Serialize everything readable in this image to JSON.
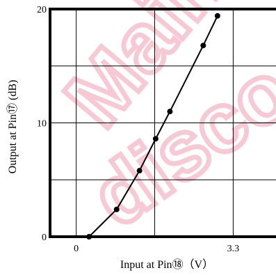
{
  "chart_data": {
    "type": "line",
    "xlabel": "Input at Pin⑱（V）",
    "ylabel": "Output at Pin⑰ (dB)",
    "x_ticks": [
      {
        "value": 0,
        "label": "0"
      },
      {
        "value": 3.3,
        "label": "3.3"
      }
    ],
    "y_ticks": [
      {
        "value": 0,
        "label": "0"
      },
      {
        "value": 10,
        "label": "10"
      },
      {
        "value": 20,
        "label": "20"
      }
    ],
    "xlim": [
      -0.55,
      4.2
    ],
    "ylim": [
      0,
      20
    ],
    "x_grid": [
      0,
      1.65,
      3.3
    ],
    "y_grid": [
      5,
      10,
      15
    ],
    "grid": true,
    "series": [
      {
        "x": [
          0.27,
          0.85,
          1.33,
          1.67,
          1.97,
          2.67,
          2.97
        ],
        "y": [
          0,
          2.4,
          5.8,
          8.6,
          11.0,
          16.8,
          19.4
        ]
      }
    ],
    "line_color": "#000000"
  },
  "watermark": {
    "lines": [
      "Mainte",
      "disco"
    ],
    "color": "#f4b8c8"
  }
}
